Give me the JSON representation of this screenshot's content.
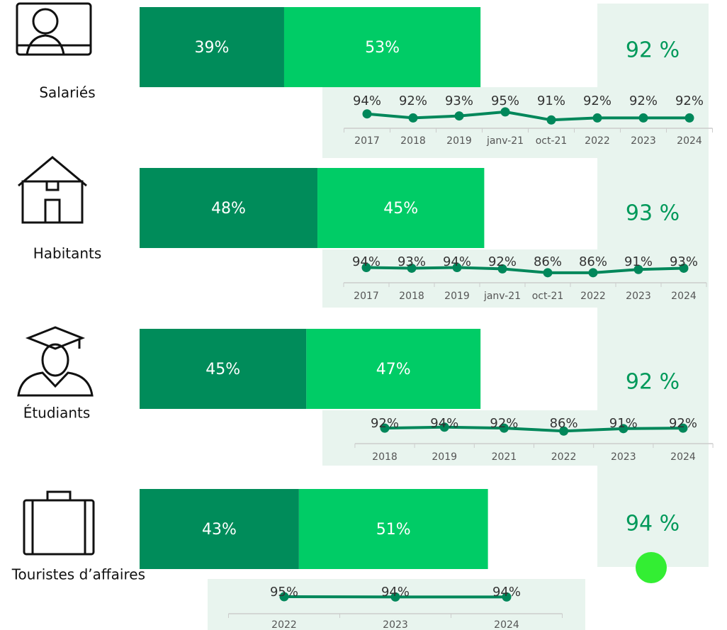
{
  "chart_data": [
    {
      "type": "bar",
      "orientation": "horizontal",
      "stacked": true,
      "label": "Salariés",
      "xlim": [
        0,
        100
      ],
      "annotation": "92 %",
      "series": [
        {
          "color": "#008c5a",
          "values": [
            39
          ],
          "value_labels": [
            "39%"
          ]
        },
        {
          "color": "#00cc66",
          "values": [
            53
          ],
          "value_labels": [
            "53%"
          ]
        }
      ]
    },
    {
      "type": "line",
      "color": "#00875a",
      "ylim": [
        89,
        96
      ],
      "categories": [
        "2017",
        "2018",
        "2019",
        "janv-21",
        "oct-21",
        "2022",
        "2023",
        "2024"
      ],
      "values": [
        94,
        92,
        93,
        95,
        91,
        92,
        92,
        92
      ],
      "value_labels": [
        "94%",
        "92%",
        "93%",
        "95%",
        "91%",
        "92%",
        "92%",
        "92%"
      ]
    },
    {
      "type": "bar",
      "orientation": "horizontal",
      "stacked": true,
      "label": "Habitants",
      "xlim": [
        0,
        100
      ],
      "annotation": "93 %",
      "series": [
        {
          "color": "#008c5a",
          "values": [
            48
          ],
          "value_labels": [
            "48%"
          ]
        },
        {
          "color": "#00cc66",
          "values": [
            45
          ],
          "value_labels": [
            "45%"
          ]
        }
      ]
    },
    {
      "type": "line",
      "color": "#00875a",
      "ylim": [
        77,
        99
      ],
      "categories": [
        "2017",
        "2018",
        "2019",
        "janv-21",
        "oct-21",
        "2022",
        "2023",
        "2024"
      ],
      "values": [
        94,
        93,
        94,
        92,
        86,
        86,
        91,
        93
      ],
      "value_labels": [
        "94%",
        "93%",
        "94%",
        "92%",
        "86%",
        "86%",
        "91%",
        "93%"
      ]
    },
    {
      "type": "bar",
      "orientation": "horizontal",
      "stacked": true,
      "label": "Étudiants",
      "xlim": [
        0,
        100
      ],
      "annotation": "92 %",
      "series": [
        {
          "color": "#008c5a",
          "values": [
            45
          ],
          "value_labels": [
            "45%"
          ]
        },
        {
          "color": "#00cc66",
          "values": [
            47
          ],
          "value_labels": [
            "47%"
          ]
        }
      ]
    },
    {
      "type": "line",
      "color": "#00875a",
      "ylim": [
        69,
        98
      ],
      "categories": [
        "2018",
        "2019",
        "2021",
        "2022",
        "2023",
        "2024"
      ],
      "values": [
        92,
        94,
        92,
        86,
        91,
        92
      ],
      "value_labels": [
        "92%",
        "94%",
        "92%",
        "86%",
        "91%",
        "92%"
      ]
    },
    {
      "type": "bar",
      "orientation": "horizontal",
      "stacked": true,
      "label": "Touristes d’affaires",
      "xlim": [
        0,
        100
      ],
      "annotation": "94 %",
      "series": [
        {
          "color": "#008c5a",
          "values": [
            43
          ],
          "value_labels": [
            "43%"
          ]
        },
        {
          "color": "#00cc66",
          "values": [
            51
          ],
          "value_labels": [
            "51%"
          ]
        }
      ]
    },
    {
      "type": "line",
      "color": "#00875a",
      "ylim": [
        50,
        100
      ],
      "categories": [
        "2022",
        "2023",
        "2024"
      ],
      "values": [
        95,
        94,
        94
      ],
      "value_labels": [
        "95%",
        "94%",
        "94%"
      ]
    }
  ]
}
